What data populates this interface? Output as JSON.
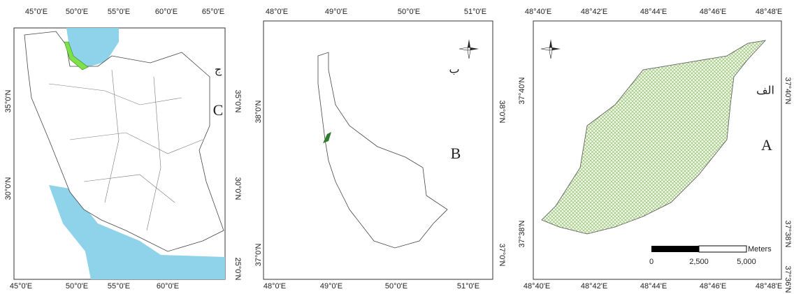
{
  "panels": [
    {
      "letter_fa": "ج",
      "letter_en": "C",
      "top_labels": [
        "45°0'E",
        "50°0'E",
        "55°0'E",
        "60°0'E",
        "65°0'E"
      ],
      "bottom_labels": [
        "45°0'E",
        "50°0'E",
        "55°0'E",
        "60°0'E"
      ],
      "left_labels": [
        "35°0'N",
        "30°0'N"
      ],
      "right_labels": [
        "35°0'N",
        "30°0'N",
        "25°0'N"
      ]
    },
    {
      "letter_fa": "ب",
      "letter_en": "B",
      "top_labels": [
        "48°0'E",
        "49°0'E",
        "50°0'E",
        "51°0'E"
      ],
      "bottom_labels": [
        "48°0'E",
        "49°0'E",
        "50°0'E",
        "51°0'E"
      ],
      "left_labels": [
        "38°0'N",
        "37°0'N"
      ],
      "right_labels": [
        "38°0'N",
        "37°0'N"
      ]
    },
    {
      "letter_fa": "الف",
      "letter_en": "A",
      "top_labels": [
        "48°40'E",
        "48°42'E",
        "48°44'E",
        "48°46'E",
        "48°48'E"
      ],
      "bottom_labels": [
        "48°40'E",
        "48°42'E",
        "48°44'E",
        "48°46'E",
        "48°48'E"
      ],
      "left_labels": [
        "37°40'N",
        "37°38'N"
      ],
      "right_labels": [
        "37°40'N",
        "37°38'N",
        "37°36'N"
      ]
    }
  ],
  "scale_bar": {
    "labels": [
      "0",
      "2,500",
      "5,000"
    ],
    "unit": "Meters"
  }
}
